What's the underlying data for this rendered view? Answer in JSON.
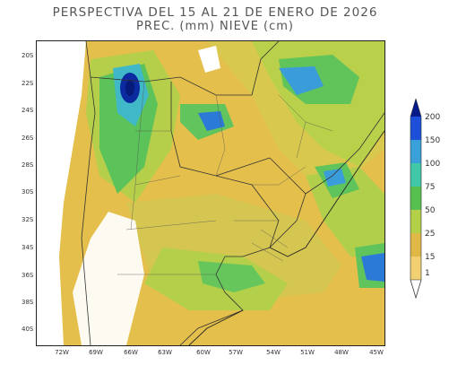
{
  "title": "PERSPECTIVA DEL 15 AL 21 DE ENERO DE 2026",
  "subtitle": "PREC. (mm) NIEVE (cm)",
  "lat_labels": [
    "20S",
    "22S",
    "24S",
    "26S",
    "28S",
    "30S",
    "32S",
    "34S",
    "36S",
    "38S",
    "40S"
  ],
  "lon_labels": [
    "72W",
    "69W",
    "66W",
    "63W",
    "60W",
    "57W",
    "54W",
    "51W",
    "48W",
    "45W"
  ],
  "legend": {
    "labels": [
      "200",
      "150",
      "100",
      "75",
      "50",
      "25",
      "15",
      "1"
    ],
    "colors": [
      "#061a8a",
      "#1c50d8",
      "#3aa0d8",
      "#40c8a8",
      "#58c050",
      "#b4d048",
      "#e0b848",
      "#f0d070"
    ]
  },
  "palette": {
    "dry": "#e6bd4a",
    "light": "#d7c44f",
    "moderate": "#b4d048",
    "green": "#5cc25a",
    "teal": "#40c0a0",
    "blue": "#2c7ad8",
    "darkblue": "#0c2aa0",
    "land_no_data": "#ffffff"
  }
}
